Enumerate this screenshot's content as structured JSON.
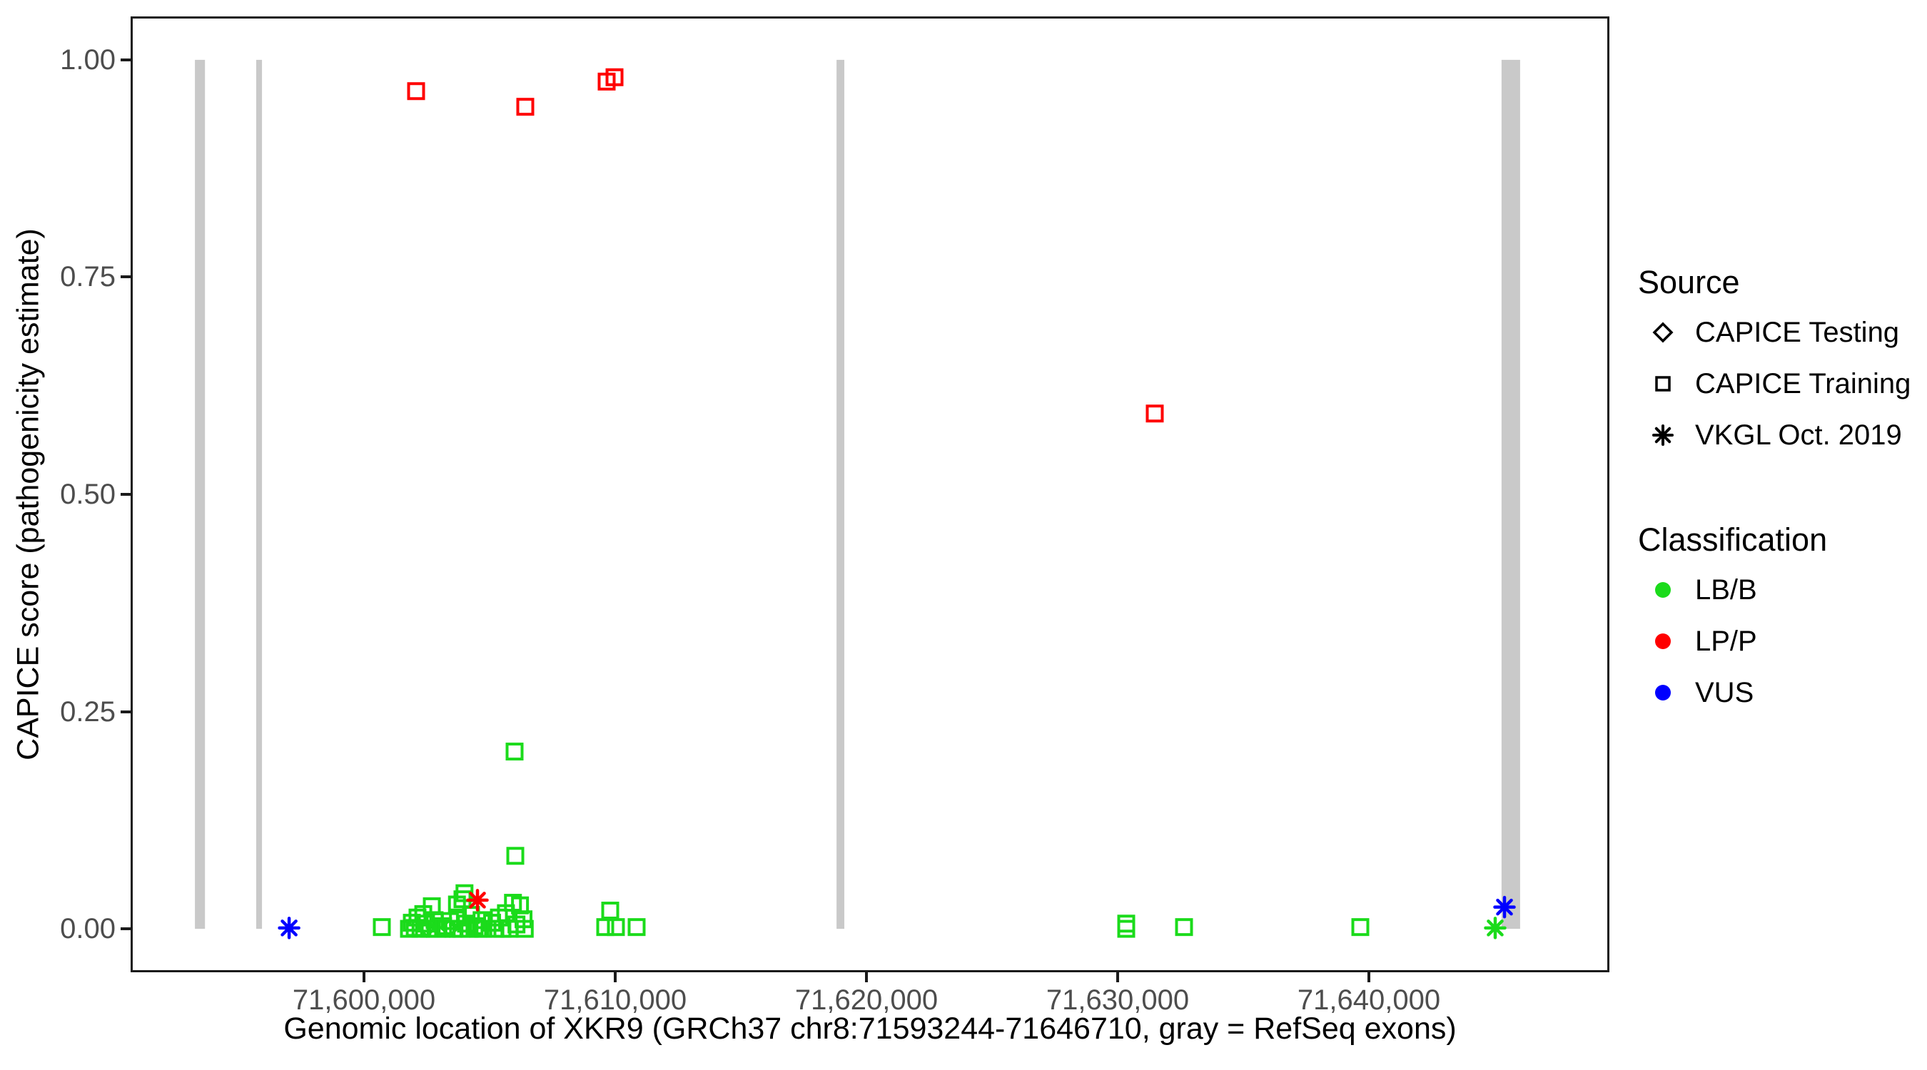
{
  "style": {
    "panel_border_color": "#1a1a1a",
    "tick_label_color": "#4d4d4d",
    "background": "#ffffff"
  },
  "legend": {
    "source": {
      "title": "Source",
      "items": [
        {
          "label": "CAPICE Testing",
          "shape": "diamond"
        },
        {
          "label": "CAPICE Training",
          "shape": "square"
        },
        {
          "label": "VKGL Oct. 2019",
          "shape": "asterisk"
        }
      ]
    },
    "classification": {
      "title": "Classification",
      "items": [
        {
          "label": "LB/B",
          "color": "#1bdb1b"
        },
        {
          "label": "LP/P",
          "color": "#ff0000"
        },
        {
          "label": "VUS",
          "color": "#0000ff"
        }
      ]
    }
  },
  "chart_data": {
    "type": "scatter",
    "title": "",
    "xlabel": "Genomic location of XKR9 (GRCh37 chr8:71593244-71646710, gray = RefSeq exons)",
    "ylabel": "CAPICE score (pathogenicity estimate)",
    "x_domain": [
      71590710,
      71649574
    ],
    "y_domain": [
      -0.05,
      1.05
    ],
    "x_ticks": [
      {
        "value": 71600000,
        "label": "71,600,000"
      },
      {
        "value": 71610000,
        "label": "71,610,000"
      },
      {
        "value": 71620000,
        "label": "71,620,000"
      },
      {
        "value": 71630000,
        "label": "71,630,000"
      },
      {
        "value": 71640000,
        "label": "71,640,000"
      }
    ],
    "y_ticks": [
      {
        "value": 0.0,
        "label": "0.00"
      },
      {
        "value": 0.25,
        "label": "0.25"
      },
      {
        "value": 0.5,
        "label": "0.50"
      },
      {
        "value": 0.75,
        "label": "0.75"
      },
      {
        "value": 1.0,
        "label": "1.00"
      }
    ],
    "grid": false,
    "legend_position": "right",
    "exon_color": "#c9c9c9",
    "exon_score_span": [
      0.0,
      1.0
    ],
    "exons": [
      [
        71593270,
        71593670
      ],
      [
        71595710,
        71595940
      ],
      [
        71618810,
        71619120
      ],
      [
        71645280,
        71646020
      ]
    ],
    "series": [
      {
        "name": "LB/B CAPICE Training",
        "classification": "LB/B",
        "source": "CAPICE Training",
        "shape": "square",
        "color": "#1bdb1b",
        "points": [
          [
            71600710,
            0.002
          ],
          [
            71601790,
            0.0
          ],
          [
            71601905,
            0.007
          ],
          [
            71602020,
            0.001
          ],
          [
            71602130,
            0.013
          ],
          [
            71602250,
            0.0
          ],
          [
            71602360,
            0.017
          ],
          [
            71602470,
            0.006
          ],
          [
            71602590,
            0.0
          ],
          [
            71602700,
            0.026
          ],
          [
            71602810,
            0.01
          ],
          [
            71602920,
            0.0
          ],
          [
            71603150,
            0.003
          ],
          [
            71603290,
            0.0
          ],
          [
            71603420,
            0.009
          ],
          [
            71603560,
            0.0
          ],
          [
            71603700,
            0.028
          ],
          [
            71603740,
            0.013
          ],
          [
            71603880,
            0.0
          ],
          [
            71603920,
            0.034
          ],
          [
            71604000,
            0.041
          ],
          [
            71604060,
            0.006
          ],
          [
            71604200,
            0.0
          ],
          [
            71604260,
            0.016
          ],
          [
            71604400,
            0.003
          ],
          [
            71604540,
            0.0
          ],
          [
            71604680,
            0.01
          ],
          [
            71604750,
            0.0
          ],
          [
            71605100,
            0.007
          ],
          [
            71605230,
            0.0
          ],
          [
            71605370,
            0.013
          ],
          [
            71605510,
            0.0
          ],
          [
            71605650,
            0.018
          ],
          [
            71605790,
            0.0
          ],
          [
            71605930,
            0.03
          ],
          [
            71606070,
            0.005
          ],
          [
            71606210,
            0.027
          ],
          [
            71606350,
            0.011
          ],
          [
            71606400,
            0.0
          ],
          [
            71605994,
            0.204
          ],
          [
            71606023,
            0.084
          ],
          [
            71609602,
            0.002
          ],
          [
            71609801,
            0.021
          ],
          [
            71610028,
            0.002
          ],
          [
            71610852,
            0.002
          ],
          [
            71630341,
            0.006
          ],
          [
            71630341,
            0.0
          ],
          [
            71632642,
            0.002
          ],
          [
            71639659,
            0.002
          ]
        ]
      },
      {
        "name": "LB/B CAPICE Testing",
        "classification": "LB/B",
        "source": "CAPICE Testing",
        "shape": "diamond",
        "color": "#1bdb1b",
        "points": [
          [
            71602500,
            0.001
          ],
          [
            71603410,
            0.001
          ]
        ]
      },
      {
        "name": "LB/B VKGL Oct. 2019",
        "classification": "LB/B",
        "source": "VKGL Oct. 2019",
        "shape": "asterisk",
        "color": "#1bdb1b",
        "points": [
          [
            71645028,
            0.001
          ]
        ]
      },
      {
        "name": "LP/P CAPICE Training",
        "classification": "LP/P",
        "source": "CAPICE Training",
        "shape": "square",
        "color": "#ff0000",
        "points": [
          [
            71602074,
            0.964
          ],
          [
            71606420,
            0.946
          ],
          [
            71609659,
            0.975
          ],
          [
            71609972,
            0.98
          ],
          [
            71631477,
            0.593
          ]
        ]
      },
      {
        "name": "LP/P VKGL Oct. 2019",
        "classification": "LP/P",
        "source": "VKGL Oct. 2019",
        "shape": "asterisk",
        "color": "#ff0000",
        "points": [
          [
            71604517,
            0.033
          ]
        ]
      },
      {
        "name": "VUS VKGL Oct. 2019",
        "classification": "VUS",
        "source": "VKGL Oct. 2019",
        "shape": "asterisk",
        "color": "#0000ff",
        "points": [
          [
            71597020,
            0.001
          ],
          [
            71645398,
            0.025
          ]
        ]
      }
    ]
  }
}
